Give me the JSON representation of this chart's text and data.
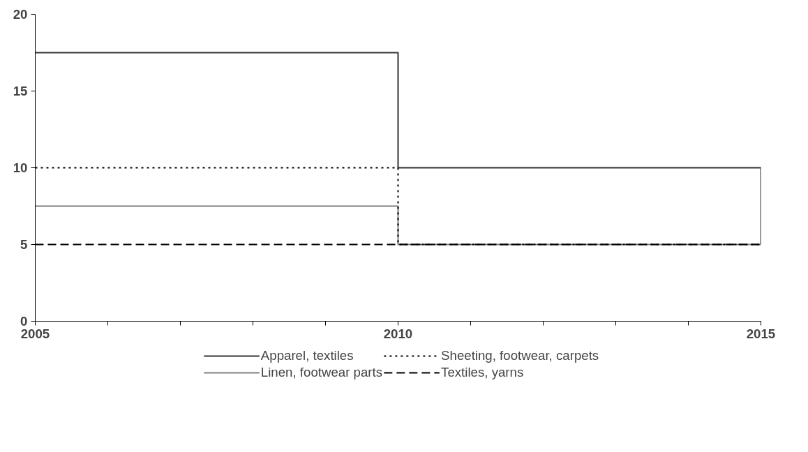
{
  "chart_data": {
    "type": "step",
    "x": [
      2005,
      2010,
      2015
    ],
    "series": [
      {
        "name": "Apparel, textiles",
        "color": "#333333",
        "line_style": "solid",
        "values": [
          17.5,
          10,
          5
        ]
      },
      {
        "name": "Linen, footwear parts",
        "color": "#808080",
        "line_style": "solid",
        "values": [
          7.5,
          5,
          5
        ]
      },
      {
        "name": "Sheeting, footwear, carpets",
        "color": "#000000",
        "line_style": "dotted",
        "values": [
          10,
          5,
          5
        ]
      },
      {
        "name": "Textiles, yarns",
        "color": "#000000",
        "line_style": "dashed",
        "values": [
          5,
          5,
          5
        ]
      }
    ],
    "xlim": [
      2005,
      2015
    ],
    "ylim": [
      0,
      20
    ],
    "xticks": [
      2005,
      {
        "value": 2006,
        "label": null
      },
      {
        "value": 2007,
        "label": null
      },
      {
        "value": 2008,
        "label": null
      },
      {
        "value": 2009,
        "label": null
      },
      2010,
      {
        "value": 2011,
        "label": null
      },
      {
        "value": 2012,
        "label": null
      },
      {
        "value": 2013,
        "label": null
      },
      {
        "value": 2014,
        "label": null
      },
      2015
    ],
    "yticks": [
      0,
      5,
      10,
      15,
      20
    ],
    "legend": "bottom",
    "grid": false,
    "marker": "none"
  }
}
